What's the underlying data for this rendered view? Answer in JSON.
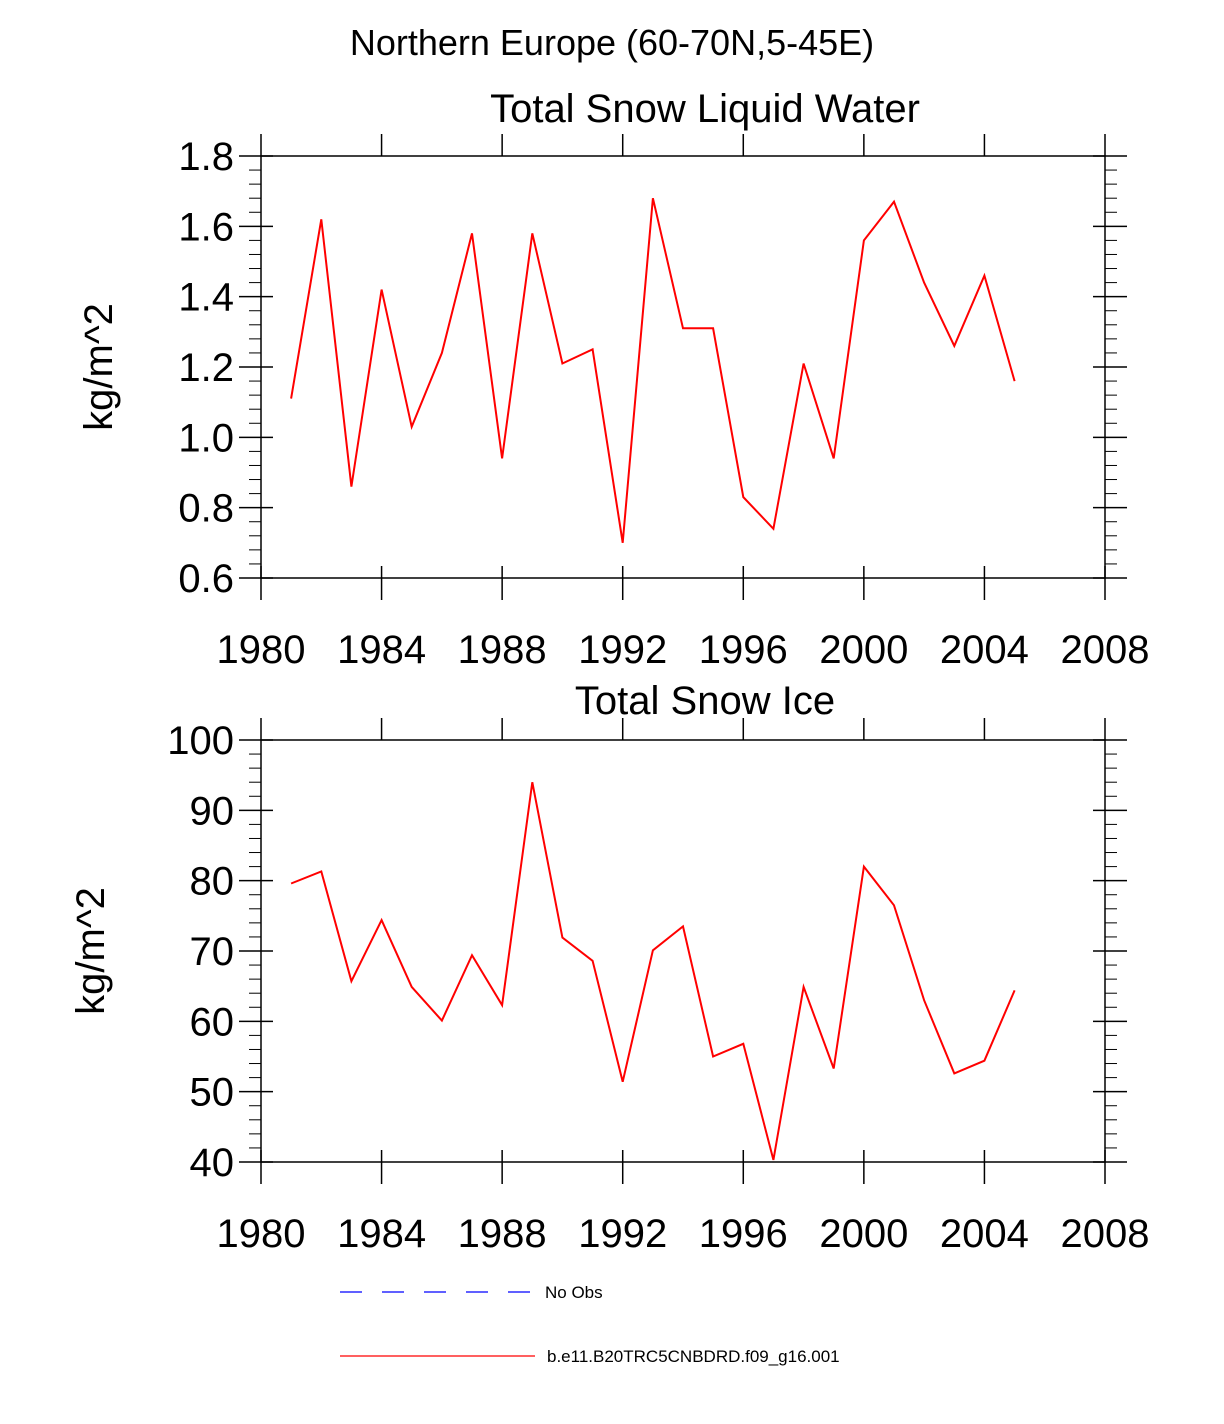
{
  "suptitle": "Northern Europe (60-70N,5-45E)",
  "colors": {
    "model": "#ff0000",
    "obs": "#0000ff",
    "axis": "#000000"
  },
  "legend": [
    {
      "label": "No Obs",
      "style": "dashed",
      "color": "#0000ff"
    },
    {
      "label": "b.e11.B20TRC5CNBDRD.f09_g16.001",
      "style": "solid",
      "color": "#ff0000"
    }
  ],
  "chart_data": [
    {
      "type": "line",
      "title": "Total Snow Liquid Water",
      "xlabel": "",
      "ylabel": "kg/m^2",
      "xlim": [
        1980,
        2008
      ],
      "ylim": [
        0.6,
        1.8
      ],
      "xticks": [
        1980,
        1984,
        1988,
        1992,
        1996,
        2000,
        2004,
        2008
      ],
      "yticks": [
        0.6,
        0.8,
        1.0,
        1.2,
        1.4,
        1.6,
        1.8
      ],
      "ytick_labels": [
        "0.6",
        "0.8",
        "1.0",
        "1.2",
        "1.4",
        "1.6",
        "1.8"
      ],
      "x": [
        1981,
        1982,
        1983,
        1984,
        1985,
        1986,
        1987,
        1988,
        1989,
        1990,
        1991,
        1992,
        1993,
        1994,
        1995,
        1996,
        1997,
        1998,
        1999,
        2000,
        2001,
        2002,
        2003,
        2004,
        2005
      ],
      "series": [
        {
          "name": "b.e11.B20TRC5CNBDRD.f09_g16.001",
          "values": [
            1.11,
            1.62,
            0.86,
            1.42,
            1.03,
            1.24,
            1.58,
            0.94,
            1.58,
            1.21,
            1.25,
            0.7,
            1.68,
            1.31,
            1.31,
            0.83,
            0.74,
            1.21,
            0.94,
            1.56,
            1.67,
            1.44,
            1.26,
            1.46,
            1.16
          ]
        }
      ]
    },
    {
      "type": "line",
      "title": "Total Snow Ice",
      "xlabel": "",
      "ylabel": "kg/m^2",
      "xlim": [
        1980,
        2008
      ],
      "ylim": [
        40,
        100
      ],
      "xticks": [
        1980,
        1984,
        1988,
        1992,
        1996,
        2000,
        2004,
        2008
      ],
      "yticks": [
        40,
        50,
        60,
        70,
        80,
        90,
        100
      ],
      "ytick_labels": [
        "40",
        "50",
        "60",
        "70",
        "80",
        "90",
        "100"
      ],
      "x": [
        1981,
        1982,
        1983,
        1984,
        1985,
        1986,
        1987,
        1988,
        1989,
        1990,
        1991,
        1992,
        1993,
        1994,
        1995,
        1996,
        1997,
        1998,
        1999,
        2000,
        2001,
        2002,
        2003,
        2004,
        2005
      ],
      "series": [
        {
          "name": "b.e11.B20TRC5CNBDRD.f09_g16.001",
          "values": [
            79.6,
            81.3,
            65.7,
            74.4,
            64.9,
            60.1,
            69.4,
            62.3,
            94.0,
            71.9,
            68.6,
            51.4,
            70.1,
            73.5,
            55.0,
            56.8,
            40.3,
            64.9,
            53.3,
            82.0,
            76.5,
            63.0,
            52.6,
            54.4,
            64.4
          ]
        }
      ]
    }
  ]
}
